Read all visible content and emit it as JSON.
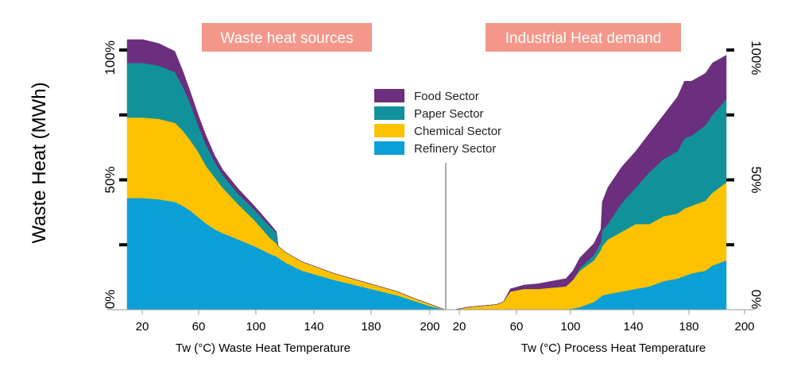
{
  "chart_data": {
    "type": "area",
    "stacked": true,
    "ylabel": "Waste Heat (MWh)",
    "y_ticks": [
      "0%",
      "50%",
      "100%"
    ],
    "ylim": [
      0,
      100
    ],
    "legend_position": "center",
    "legend": [
      {
        "name": "Food Sector",
        "color": "#6b2f7e"
      },
      {
        "name": "Paper Sector",
        "color": "#11929a"
      },
      {
        "name": "Chemical Sector",
        "color": "#fcc200"
      },
      {
        "name": "Refinery Sector",
        "color": "#0aa0d6"
      }
    ],
    "panels": [
      {
        "id": "sources",
        "title": "Waste heat sources",
        "xlabel": "Tw (°C) Waste Heat Temperature",
        "x_ticks": [
          20,
          60,
          100,
          140,
          180,
          200
        ],
        "xlim": [
          10,
          210
        ],
        "x": [
          10,
          20,
          30,
          40,
          45,
          50,
          55,
          60,
          65,
          70,
          80,
          90,
          100,
          104,
          105,
          110,
          120,
          140,
          160,
          180,
          190,
          200,
          210
        ],
        "series": [
          {
            "name": "Refinery Sector",
            "color": "#0aa0d6",
            "values": [
              43,
              43,
              42.5,
              41.5,
              40,
              38,
              35.5,
              33,
              31,
              29.5,
              27,
              24.5,
              21.5,
              20.5,
              20,
              18,
              15,
              11.5,
              8.5,
              5.5,
              3.5,
              1.5,
              0
            ]
          },
          {
            "name": "Chemical Sector",
            "color": "#fcc200",
            "values": [
              31,
              31,
              31,
              30.5,
              29,
              27,
              25,
              22,
              20,
              17.5,
              13.5,
              10,
              6,
              5,
              4.5,
              4,
              3.5,
              2.5,
              2,
              1.5,
              1,
              0.8,
              0
            ]
          },
          {
            "name": "Paper Sector",
            "color": "#11929a",
            "values": [
              21,
              21,
              20.5,
              19.5,
              17,
              14,
              10,
              8,
              6,
              5,
              4,
              4,
              4.5,
              4,
              0,
              0,
              0,
              0,
              0,
              0,
              0,
              0,
              0
            ]
          },
          {
            "name": "Food Sector",
            "color": "#6b2f7e",
            "values": [
              9,
              9,
              8.5,
              8,
              6,
              4.5,
              4,
              3.5,
              2.5,
              2,
              2,
              1.5,
              1,
              0.5,
              0,
              0,
              0,
              0,
              0,
              0,
              0,
              0,
              0
            ]
          }
        ]
      },
      {
        "id": "demand",
        "title": "Industrial Heat demand",
        "xlabel": "Tw (°C) Process Heat Temperature",
        "x_ticks": [
          20,
          60,
          100,
          140,
          180,
          200
        ],
        "xlim": [
          10,
          205
        ],
        "x": [
          10,
          20,
          40,
          45,
          50,
          60,
          70,
          80,
          90,
          95,
          100,
          110,
          115,
          116,
          120,
          130,
          140,
          150,
          160,
          170,
          175,
          180,
          190,
          195,
          205
        ],
        "series": [
          {
            "name": "Refinery Sector",
            "color": "#0aa0d6",
            "values": [
              0,
              0,
              0,
              0,
              0,
              0,
              0,
              0,
              0,
              0.5,
              1,
              3,
              5,
              5.5,
              6,
              7,
              8,
              9,
              11,
              12,
              13,
              14,
              15,
              17,
              19
            ]
          },
          {
            "name": "Chemical Sector",
            "color": "#fcc200",
            "values": [
              0,
              1,
              2,
              3,
              7,
              8,
              8,
              8.5,
              9,
              11,
              14,
              16,
              18,
              19,
              21,
              23,
              25,
              24,
              25,
              25,
              26,
              26,
              27,
              28,
              30
            ]
          },
          {
            "name": "Paper Sector",
            "color": "#11929a",
            "values": [
              0,
              0,
              0,
              0,
              0,
              0,
              0,
              0,
              0,
              0,
              1,
              2,
              3,
              6,
              6,
              11,
              14,
              20,
              22,
              24,
              27,
              27,
              29,
              30,
              32
            ]
          },
          {
            "name": "Food Sector",
            "color": "#6b2f7e",
            "values": [
              0,
              0,
              0,
              0,
              1,
              1.5,
              2,
              2.5,
              3,
              3.5,
              4,
              4.5,
              5,
              11,
              14,
              14,
              14,
              15,
              17,
              21,
              22,
              21,
              20,
              20,
              17
            ]
          }
        ]
      }
    ]
  }
}
